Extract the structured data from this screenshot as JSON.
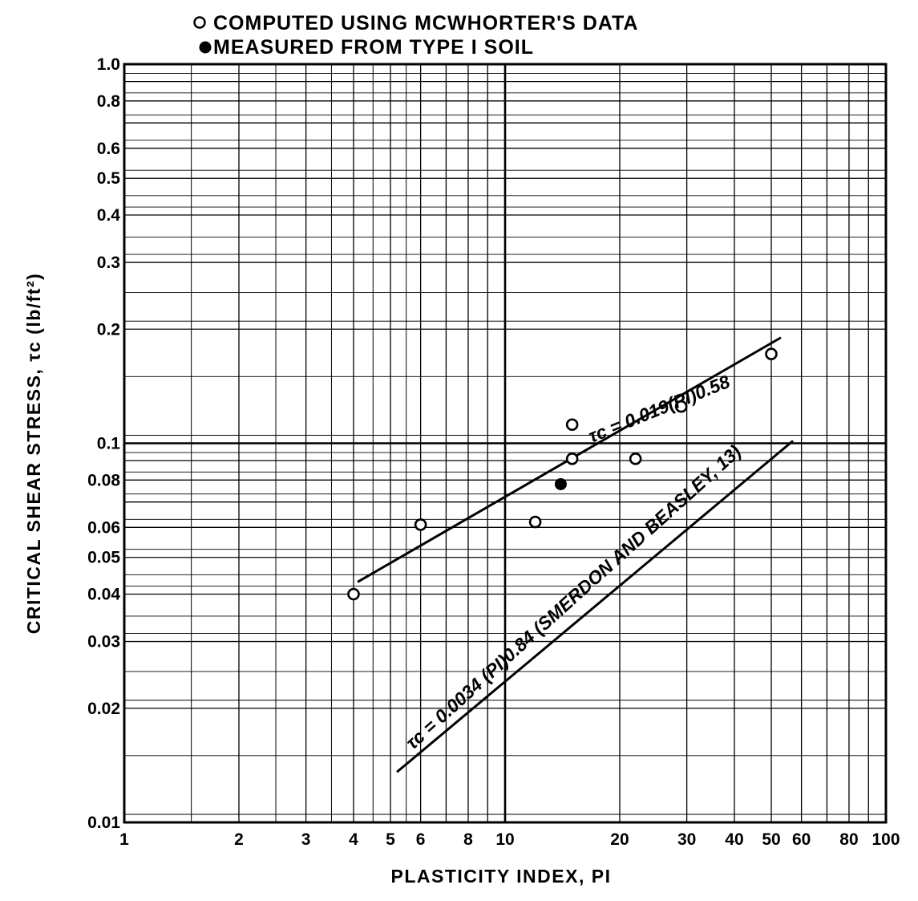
{
  "chart_data": {
    "type": "scatter",
    "title": "",
    "xlabel": "PLASTICITY INDEX, PI",
    "ylabel": "CRITICAL SHEAR STRESS, τc (lb/ft²)",
    "xscale": "log",
    "yscale": "log",
    "xlim": [
      1,
      100
    ],
    "ylim": [
      0.01,
      1.0
    ],
    "grid": true,
    "legend_position": "top-left, above plot",
    "legend": [
      {
        "marker": "open-circle",
        "label": "COMPUTED USING MCWHORTER'S DATA"
      },
      {
        "marker": "filled-circle",
        "label": "MEASURED FROM TYPE I SOIL"
      }
    ],
    "x_ticks": [
      {
        "value": 1,
        "label": "1"
      },
      {
        "value": 2,
        "label": "2"
      },
      {
        "value": 3,
        "label": "3"
      },
      {
        "value": 4,
        "label": "4"
      },
      {
        "value": 5,
        "label": "5"
      },
      {
        "value": 6,
        "label": "6"
      },
      {
        "value": 8,
        "label": "8"
      },
      {
        "value": 10,
        "label": "10"
      },
      {
        "value": 20,
        "label": "20"
      },
      {
        "value": 30,
        "label": "30"
      },
      {
        "value": 40,
        "label": "40"
      },
      {
        "value": 50,
        "label": "50"
      },
      {
        "value": 60,
        "label": "60"
      },
      {
        "value": 80,
        "label": "80"
      },
      {
        "value": 100,
        "label": "100"
      }
    ],
    "y_ticks": [
      {
        "value": 0.01,
        "label": "0.01"
      },
      {
        "value": 0.02,
        "label": "0.02"
      },
      {
        "value": 0.03,
        "label": "0.03"
      },
      {
        "value": 0.04,
        "label": "0.04"
      },
      {
        "value": 0.05,
        "label": "0.05"
      },
      {
        "value": 0.06,
        "label": "0.06"
      },
      {
        "value": 0.08,
        "label": "0.08"
      },
      {
        "value": 0.1,
        "label": "0.1"
      },
      {
        "value": 0.2,
        "label": "0.2"
      },
      {
        "value": 0.3,
        "label": "0.3"
      },
      {
        "value": 0.4,
        "label": "0.4"
      },
      {
        "value": 0.5,
        "label": "0.5"
      },
      {
        "value": 0.6,
        "label": "0.6"
      },
      {
        "value": 0.8,
        "label": "0.8"
      },
      {
        "value": 1.0,
        "label": "1.0"
      }
    ],
    "series": [
      {
        "name": "COMPUTED USING MCWHORTER'S DATA",
        "marker": "open-circle",
        "points": [
          {
            "x": 4,
            "y": 0.04
          },
          {
            "x": 6,
            "y": 0.061
          },
          {
            "x": 12,
            "y": 0.062
          },
          {
            "x": 15,
            "y": 0.112
          },
          {
            "x": 15,
            "y": 0.091
          },
          {
            "x": 22,
            "y": 0.091
          },
          {
            "x": 29,
            "y": 0.125
          },
          {
            "x": 50,
            "y": 0.172
          }
        ]
      },
      {
        "name": "MEASURED FROM TYPE I SOIL",
        "marker": "filled-circle",
        "points": [
          {
            "x": 14,
            "y": 0.078
          }
        ]
      }
    ],
    "fit_lines": [
      {
        "label": "τc = 0.019(PI)0.58",
        "coef": 0.019,
        "exponent": 0.58,
        "x_range": [
          4.1,
          53
        ]
      },
      {
        "label": "τc = 0.0034 (PI)0.84 (SMERDON AND BEASLEY, 13)",
        "coef": 0.0034,
        "exponent": 0.84,
        "x_range": [
          5.2,
          57
        ]
      }
    ]
  }
}
